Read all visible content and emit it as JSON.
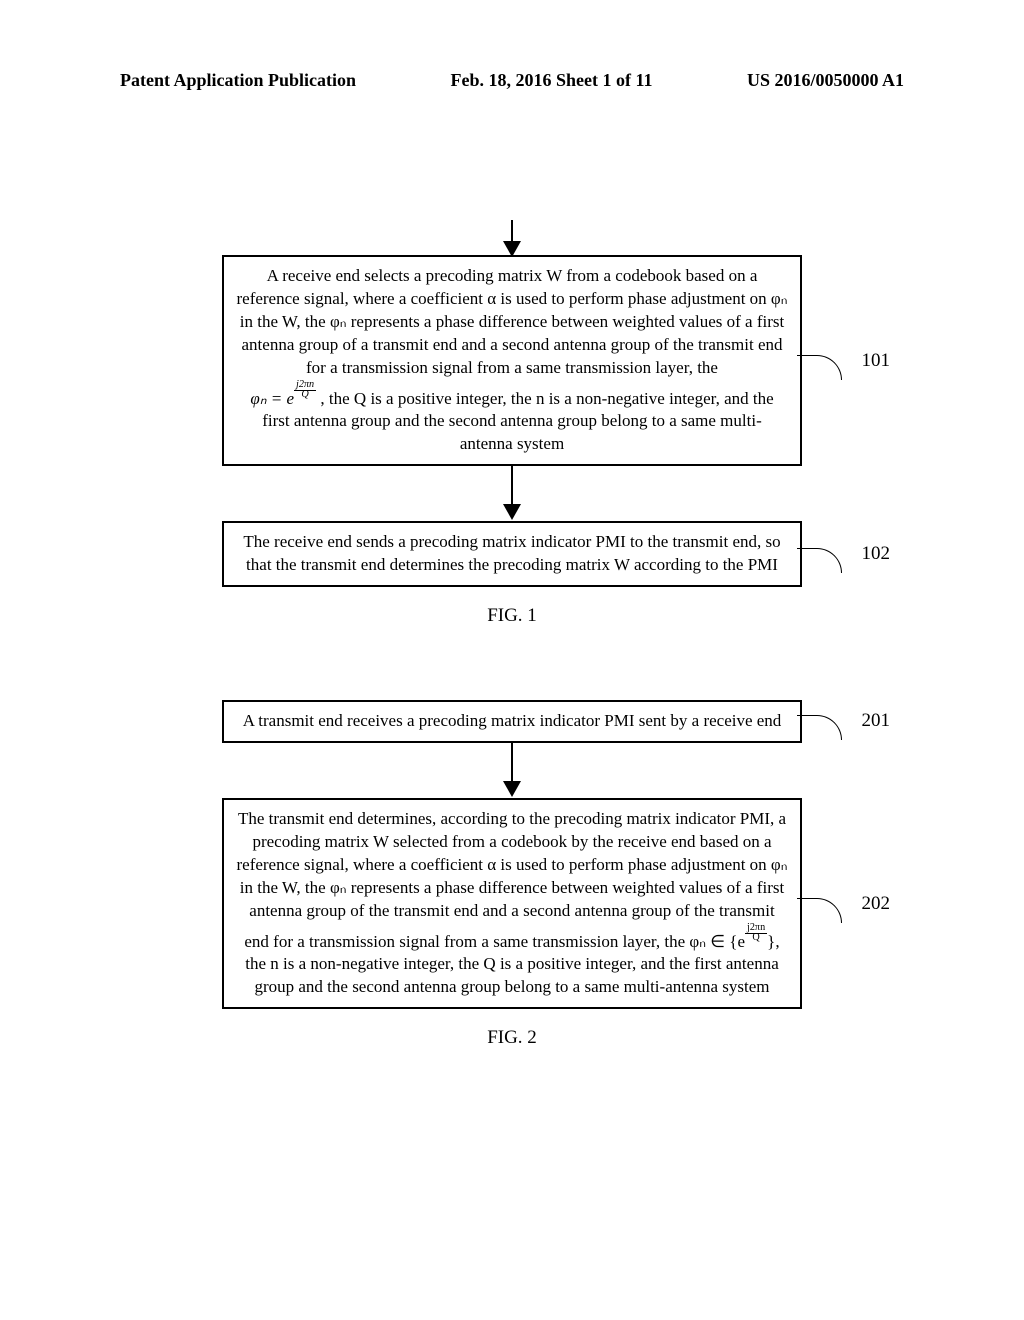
{
  "header": {
    "left": "Patent Application Publication",
    "center": "Feb. 18, 2016  Sheet 1 of 11",
    "right": "US 2016/0050000 A1"
  },
  "fig1": {
    "box101": {
      "text": "A receive end selects a precoding matrix W from a codebook based on a reference signal, where a coefficient α is used to perform phase adjustment on φₙ in the W, the φₙ represents a phase difference between weighted values of a first antenna group of a transmit end and a second antenna group of the transmit end for a transmission signal from a same transmission layer, the",
      "formula_prefix": "φₙ = e",
      "formula_exp_top": "j2πn",
      "formula_exp_bot": "Q",
      "text_after": ", the Q is a positive integer, the n is a non-negative integer, and the first antenna group and the second antenna group belong to a same multi-antenna system",
      "ref": "101"
    },
    "box102": {
      "text": "The receive end sends a precoding matrix indicator PMI to the transmit end, so that the transmit end determines the precoding matrix W according to the PMI",
      "ref": "102"
    },
    "caption": "FIG. 1"
  },
  "fig2": {
    "box201": {
      "text": "A transmit end receives a precoding matrix indicator PMI sent by a receive end",
      "ref": "201"
    },
    "box202": {
      "text_before": "The transmit end determines, according to the precoding matrix indicator PMI, a precoding matrix W selected from a codebook by the receive end based on a reference signal, where a coefficient α is used to perform phase adjustment on  φₙ in the W, the φₙ represents a phase difference between weighted values of a first antenna group of the transmit end and a second antenna group of the transmit end for a transmission signal from a same transmission layer, the φₙ ∈ {e",
      "formula_exp_top": "j2πn",
      "formula_exp_bot": "Q",
      "text_after": "}, the n is a non-negative integer, the Q is a positive integer, and the first antenna group and the second antenna group belong to a same multi-antenna system",
      "ref": "202"
    },
    "caption": "FIG. 2"
  },
  "colors": {
    "background": "#ffffff",
    "text": "#000000",
    "border": "#000000"
  }
}
